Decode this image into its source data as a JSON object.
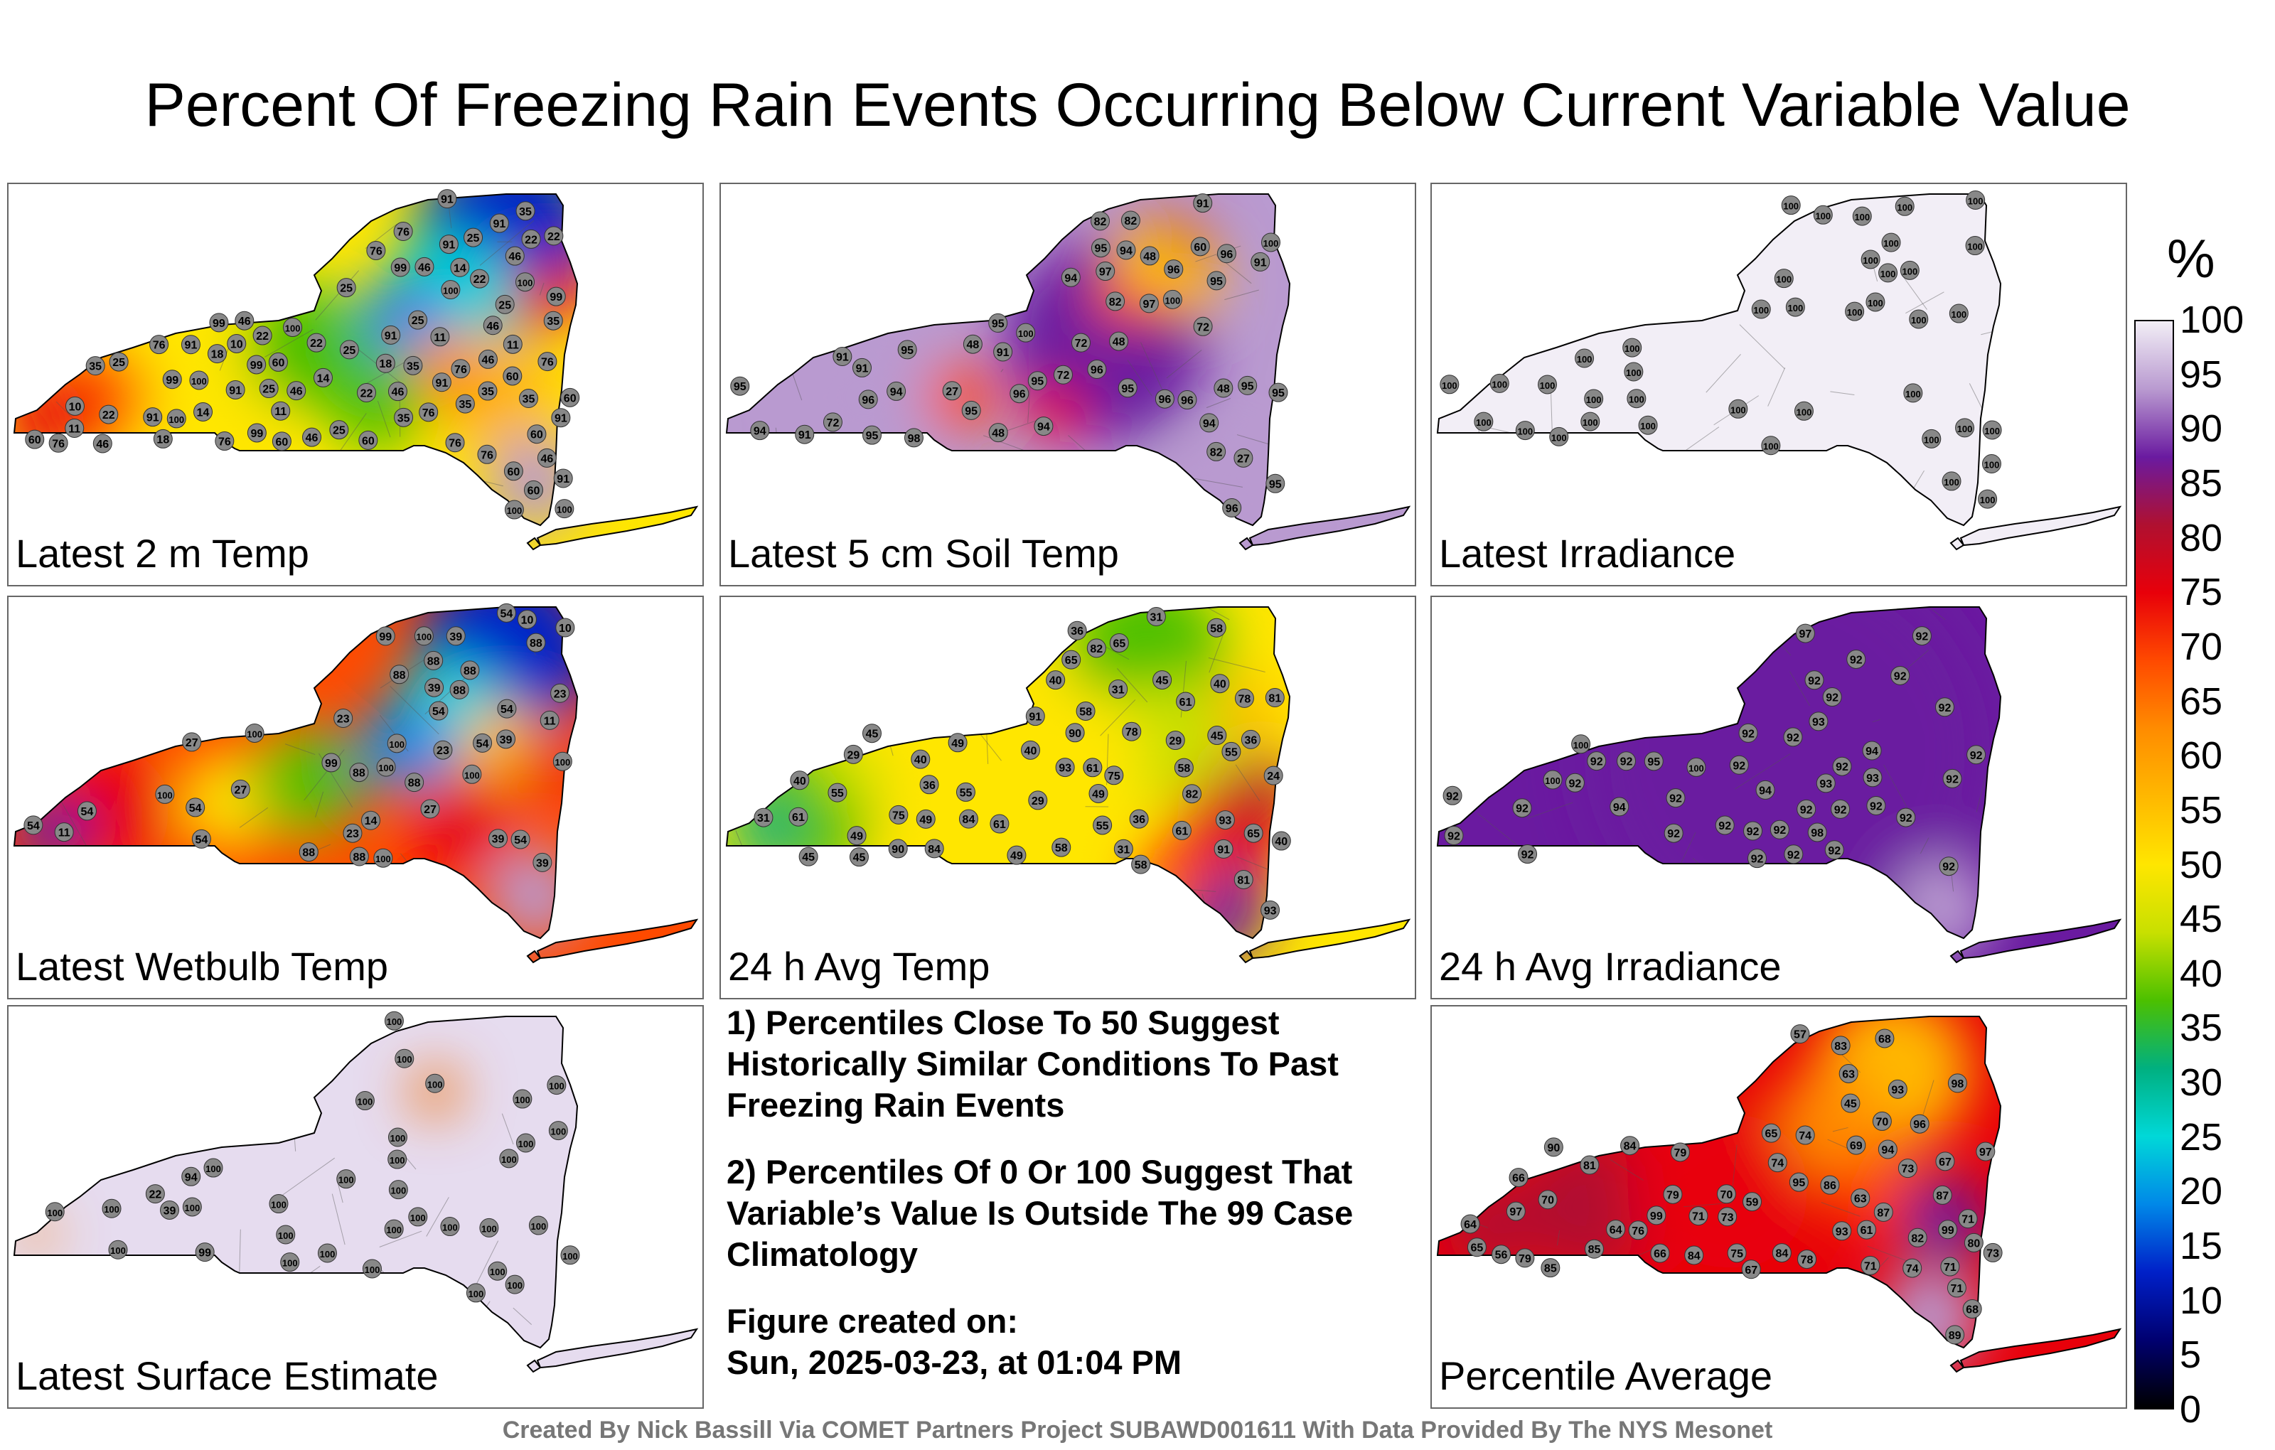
{
  "title": "Percent Of Freezing Rain Events Occurring Below Current Variable Value",
  "panels": [
    {
      "id": "latest-2m-temp",
      "label": "Latest 2 m Temp",
      "fill": "mixed",
      "stations": [
        "11",
        "10",
        "11",
        "25",
        "14",
        "22",
        "14",
        "22",
        "22",
        "10",
        "11",
        "25",
        "60",
        "18",
        "18",
        "25",
        "14",
        "11",
        "25",
        "46",
        "60",
        "22",
        "35",
        "25",
        "46",
        "91",
        "99",
        "60",
        "76",
        "22",
        "46",
        "60",
        "76",
        "99",
        "91",
        "99",
        "60",
        "91",
        "46",
        "60",
        "76",
        "35",
        "18",
        "46",
        "35",
        "25",
        "91",
        "76",
        "76",
        "60",
        "76",
        "22",
        "35",
        "35",
        "76",
        "25",
        "46",
        "46",
        "99",
        "91",
        "35",
        "46",
        "76",
        "22",
        "91",
        "76",
        "60",
        "91",
        "35",
        "76",
        "91",
        "35",
        "46",
        "25",
        "46",
        "91",
        "60",
        "91",
        "99",
        "100",
        "99",
        "100",
        "100",
        "100",
        "100",
        "100",
        "100"
      ]
    },
    {
      "id": "latest-5cm-soil-temp",
      "label": "Latest 5 cm Soil Temp",
      "fill": "purple",
      "stations": [
        "95",
        "94",
        "95",
        "91",
        "91",
        "72",
        "82",
        "100",
        "91",
        "72",
        "60",
        "48",
        "94",
        "48",
        "48",
        "27",
        "82",
        "91",
        "94",
        "48",
        "82",
        "48",
        "95",
        "72",
        "95",
        "95",
        "94",
        "96",
        "95",
        "96",
        "95",
        "82",
        "91",
        "27",
        "96",
        "95",
        "96",
        "94",
        "97",
        "94",
        "96",
        "72",
        "91",
        "96",
        "95",
        "95",
        "96",
        "95",
        "100",
        "95",
        "97",
        "96",
        "98",
        "100"
      ]
    },
    {
      "id": "latest-irradiance",
      "label": "Latest Irradiance",
      "fill": "uniform-100",
      "stations": [
        "100",
        "100",
        "100",
        "100",
        "100",
        "100",
        "100",
        "100",
        "100",
        "100",
        "100",
        "100",
        "100",
        "100",
        "100",
        "100",
        "100",
        "100",
        "100",
        "100",
        "100",
        "100",
        "100",
        "100",
        "100",
        "100",
        "100",
        "100",
        "100",
        "100",
        "100",
        "100",
        "100",
        "100",
        "100",
        "100",
        "100",
        "100",
        "100",
        "100"
      ]
    },
    {
      "id": "latest-wetbulb-temp",
      "label": "Latest Wetbulb Temp",
      "fill": "mixed",
      "stations": [
        "11",
        "10",
        "11",
        "27",
        "23",
        "14",
        "23",
        "10",
        "27",
        "88",
        "54",
        "23",
        "54",
        "39",
        "54",
        "88",
        "54",
        "100",
        "88",
        "39",
        "54",
        "88",
        "23",
        "39",
        "88",
        "99",
        "88",
        "54",
        "39",
        "54",
        "88",
        "99",
        "39",
        "54",
        "27",
        "100",
        "88",
        "54",
        "88",
        "100",
        "100",
        "100",
        "100",
        "100",
        "100"
      ]
    },
    {
      "id": "24h-avg-temp",
      "label": "24 h Avg Temp",
      "fill": "mixed",
      "stations": [
        "36",
        "40",
        "36",
        "40",
        "61",
        "49",
        "45",
        "36",
        "29",
        "24",
        "29",
        "78",
        "45",
        "40",
        "31",
        "29",
        "40",
        "65",
        "81",
        "58",
        "55",
        "58",
        "40",
        "61",
        "84",
        "49",
        "31",
        "45",
        "61",
        "49",
        "58",
        "65",
        "58",
        "82",
        "40",
        "31",
        "61",
        "49",
        "55",
        "75",
        "84",
        "81",
        "49",
        "45",
        "55",
        "61",
        "91",
        "31",
        "36",
        "45",
        "55",
        "65",
        "58",
        "78",
        "75",
        "90",
        "91",
        "82",
        "90",
        "93",
        "93",
        "93"
      ]
    },
    {
      "id": "24h-avg-irradiance",
      "label": "24 h Avg Irradiance",
      "fill": "uniform-92",
      "stations": [
        "92",
        "92",
        "92",
        "93",
        "93",
        "92",
        "92",
        "92",
        "92",
        "92",
        "92",
        "92",
        "92",
        "92",
        "92",
        "92",
        "92",
        "92",
        "92",
        "92",
        "92",
        "92",
        "92",
        "92",
        "92",
        "92",
        "92",
        "92",
        "94",
        "92",
        "92",
        "92",
        "93",
        "92",
        "92",
        "92",
        "94",
        "95",
        "97",
        "98",
        "94",
        "100",
        "100",
        "100"
      ]
    },
    {
      "id": "latest-surface-estimate",
      "label": "Latest Surface Estimate",
      "fill": "uniform-100",
      "stations": [
        "100",
        "94",
        "100",
        "100",
        "100",
        "22",
        "99",
        "100",
        "100",
        "100",
        "100",
        "100",
        "100",
        "100",
        "100",
        "100",
        "39",
        "100",
        "100",
        "100",
        "100",
        "100",
        "100",
        "100",
        "100",
        "100",
        "100",
        "100",
        "100",
        "100",
        "100",
        "100",
        "100",
        "100",
        "100",
        "100"
      ]
    },
    {
      "id": "percentile-average",
      "label": "Percentile Average",
      "fill": "mixed",
      "stations": [
        "63",
        "63",
        "64",
        "71",
        "64",
        "70",
        "68",
        "65",
        "59",
        "57",
        "68",
        "65",
        "56",
        "66",
        "76",
        "69",
        "45",
        "61",
        "71",
        "84",
        "70",
        "74",
        "71",
        "81",
        "93",
        "80",
        "86",
        "78",
        "79",
        "73",
        "96",
        "85",
        "84",
        "87",
        "87",
        "66",
        "70",
        "89",
        "95",
        "74",
        "71",
        "67",
        "82",
        "75",
        "73",
        "79",
        "74",
        "73",
        "90",
        "84",
        "85",
        "67",
        "79",
        "71",
        "94",
        "93",
        "83",
        "97",
        "97",
        "98",
        "99",
        "99"
      ]
    }
  ],
  "notes": [
    "1) Percentiles Close To 50 Suggest Historically Similar Conditions To Past Freezing Rain Events",
    "2) Percentiles Of 0 Or 100 Suggest That Variable’s Value Is Outside The 99 Case Climatology",
    "Figure created on:",
    "Sun, 2025-03-23, at 01:04 PM"
  ],
  "colorbar": {
    "unit": "%",
    "ticks": [
      "100",
      "95",
      "90",
      "85",
      "80",
      "75",
      "70",
      "65",
      "60",
      "55",
      "50",
      "45",
      "40",
      "35",
      "30",
      "25",
      "20",
      "15",
      "10",
      "5",
      "0"
    ],
    "colors": [
      "#f2eef6",
      "#b99ad0",
      "#6a1aa0",
      "#b01030",
      "#e8000a",
      "#ff4a00",
      "#ff8c00",
      "#ffb800",
      "#ffe600",
      "#c8e000",
      "#4cc000",
      "#00b080",
      "#00d8d8",
      "#0088e8",
      "#0020c8",
      "#000070",
      "#000000"
    ]
  },
  "footer": "Created By Nick Bassill Via COMET Partners Project SUBAWD001611 With Data Provided By The NYS Mesonet"
}
